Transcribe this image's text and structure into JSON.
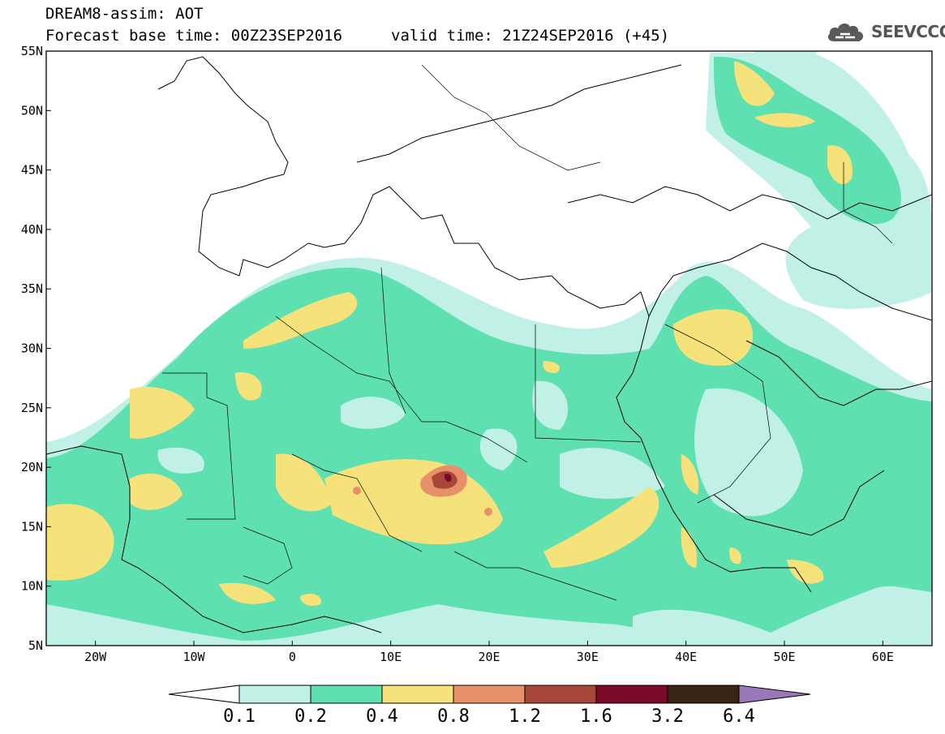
{
  "title": {
    "line1": "DREAM8-assim: AOT",
    "line2": "Forecast base time: 00Z23SEP2016",
    "valid": "valid time: 21Z24SEP2016 (+45)"
  },
  "logo": {
    "text": "SEEVCCC",
    "icon": "cloud-icon",
    "color": "#5a5a5a"
  },
  "map": {
    "projection": "lat-lon",
    "lon_range": [
      -25,
      65
    ],
    "lat_range": [
      5,
      55
    ],
    "lat_labels": [
      "55N",
      "50N",
      "45N",
      "40N",
      "35N",
      "30N",
      "25N",
      "20N",
      "15N",
      "10N",
      "5N"
    ],
    "lat_values": [
      55,
      50,
      45,
      40,
      35,
      30,
      25,
      20,
      15,
      10,
      5
    ],
    "lon_labels": [
      "20W",
      "10W",
      "0",
      "10E",
      "20E",
      "30E",
      "40E",
      "50E",
      "60E"
    ],
    "lon_values": [
      -20,
      -10,
      0,
      10,
      20,
      30,
      40,
      50,
      60
    ],
    "field": "Aerosol Optical Thickness"
  },
  "colorbar": {
    "labels": [
      "0.1",
      "0.2",
      "0.4",
      "0.8",
      "1.2",
      "1.6",
      "3.2",
      "6.4"
    ],
    "colors": [
      "#c0f0e6",
      "#5ee0b0",
      "#f5e27a",
      "#e8906a",
      "#a8463a",
      "#7a0a28",
      "#3a2414",
      "#9a78b8"
    ],
    "below_color": "#ffffff"
  }
}
